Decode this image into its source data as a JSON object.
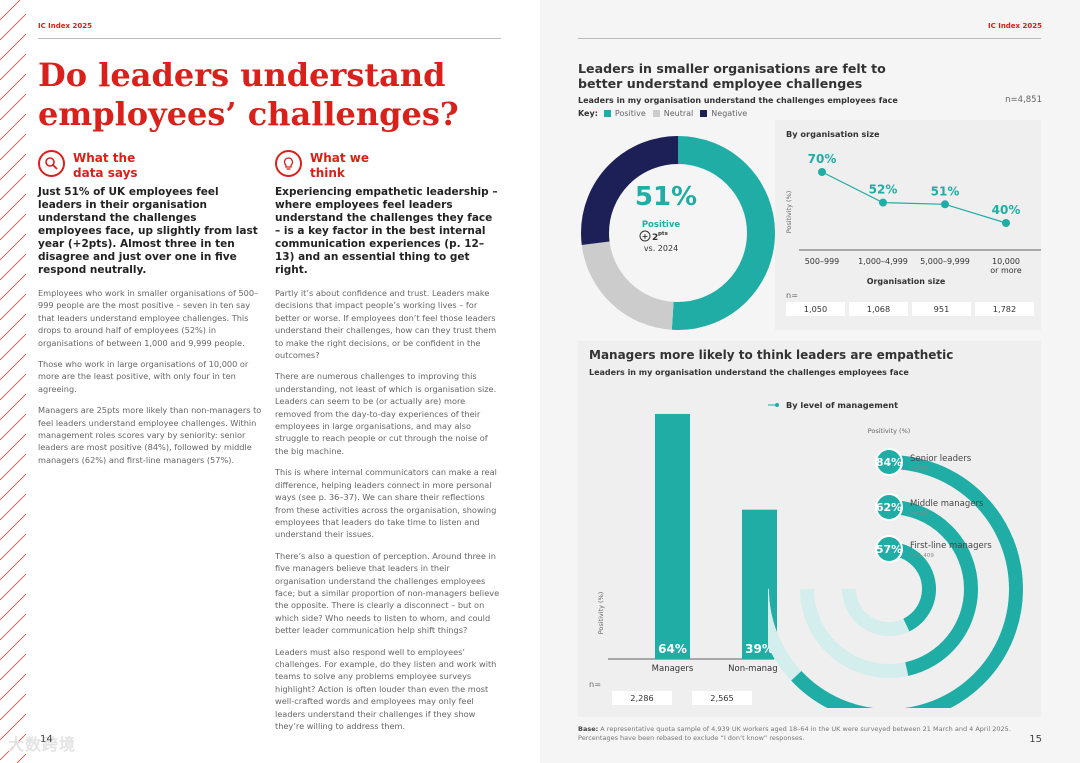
{
  "header": {
    "left": "IC Index 2025",
    "right": "IC Index 2025"
  },
  "left": {
    "title": "Do leaders understand employees’ challenges?",
    "col1": {
      "heading": "What the data says",
      "icon": "magnifier-icon",
      "lead": "Just 51% of UK employees feel leaders in their organisation understand the challenges employees face, up slightly from last year (+2pts). Almost three in ten disagree and just over one in five respond neutrally.",
      "paragraphs": [
        "Employees who work in smaller organisations of 500–999 people are the most positive – seven in ten say that leaders understand employee challenges. This drops to around half of employees (52%) in organisations of between 1,000 and 9,999 people.",
        "Those who work in large organisations of 10,000 or more are the least positive, with only four in ten agreeing.",
        "Managers are 25pts more likely than non-managers to feel leaders understand employee challenges. Within management roles scores vary by seniority: senior leaders are most positive (84%), followed by middle managers (62%) and first-line managers (57%)."
      ]
    },
    "col2": {
      "heading": "What we think",
      "icon": "lightbulb-icon",
      "lead": "Experiencing empathetic leadership – where employees feel leaders understand the challenges they face – is a key factor in the best internal communication experiences (p. 12–13) and an essential thing to get right.",
      "paragraphs": [
        "Partly it’s about confidence and trust. Leaders make decisions that impact people’s working lives – for better or worse. If employees don’t feel those leaders understand their challenges, how can they trust them to make the right decisions, or be confident in the outcomes?",
        "There are numerous challenges to improving this understanding, not least of which is organisation size. Leaders can seem to be (or actually are) more removed from the day-to-day experiences of their employees in large organisations, and may also struggle to reach people or cut through the noise of the big machine.",
        "This is where internal communicators can make a real difference, helping leaders connect in more personal ways (see p. 36–37). We can share their reflections from these activities across the organisation, showing employees that leaders do take time to listen and understand their issues.",
        "There’s also a question of perception. Around three in five managers believe that leaders in their organisation understand the challenges employees face; but a similar proportion of non-managers believe the opposite. There is clearly a disconnect – but on which side? Who needs to listen to whom, and could better leader communication help shift things?",
        "Leaders must also respond well to employees’ challenges. For example, do they listen and work with teams to solve any problems employee surveys highlight? Action is often louder than even the most well-crafted words and employees may only feel leaders understand their challenges if they show they’re willing to address them."
      ]
    },
    "page_number": "14",
    "watermark": "大数跨境"
  },
  "right": {
    "section1": {
      "title": "Leaders in smaller organisations are felt to better understand employee challenges",
      "subtitle": "Leaders in my organisation understand the challenges employees face",
      "n_total": "n=4,851",
      "key_label": "Key:",
      "key": [
        {
          "label": "Positive",
          "color": "#1fada5"
        },
        {
          "label": "Neutral",
          "color": "#cccccc"
        },
        {
          "label": "Negative",
          "color": "#1c2056"
        }
      ]
    },
    "section2": {
      "title": "Managers more likely to think leaders are empathetic",
      "subtitle": "Leaders in my organisation understand the challenges employees face"
    },
    "page_number": "15",
    "footer": {
      "label": "Base:",
      "text": "A representative quota sample of 4,939 UK workers aged 18–64 in the UK were surveyed between 21 March and 4 April 2025. Percentages have been rebased to exclude “I don’t know” responses."
    }
  },
  "chart_data": [
    {
      "type": "pie",
      "style": "donut",
      "title": "Leaders in my organisation understand the challenges employees face",
      "categories": [
        "Positive",
        "Neutral",
        "Negative"
      ],
      "values": [
        51,
        22,
        27
      ],
      "center_value": "51%",
      "center_label": "Positive",
      "change": "+2pts",
      "change_value": "2",
      "change_unit": "pts",
      "change_symbol": "+",
      "comparison": "vs. 2024"
    },
    {
      "type": "line",
      "title": "By organisation size",
      "categories": [
        "500–999",
        "1,000–4,999",
        "5,000–9,999",
        "10,000 or more"
      ],
      "values": [
        70,
        52,
        51,
        40
      ],
      "value_labels": [
        "70%",
        "52%",
        "51%",
        "40%"
      ],
      "xlabel": "Organisation size",
      "ylabel": "Positivity (%)",
      "ylim": [
        30,
        80
      ],
      "n_label": "n=",
      "n": [
        "1,050",
        "1,068",
        "951",
        "1,782"
      ]
    },
    {
      "type": "bar",
      "categories": [
        "Managers",
        "Non-managers"
      ],
      "values": [
        64,
        39
      ],
      "value_labels": [
        "64%",
        "39%"
      ],
      "ylabel": "Positivity (%)",
      "ylim": [
        0,
        70
      ],
      "n_label": "n=",
      "n": [
        "2,286",
        "2,565"
      ]
    },
    {
      "type": "radial-bar",
      "title": "By level of management",
      "axis_label": "Positivity (%)",
      "categories": [
        "Senior leaders",
        "Middle managers",
        "First-line managers"
      ],
      "values": [
        84,
        62,
        57
      ],
      "value_labels": [
        "84%",
        "62%",
        "57%"
      ],
      "n": [
        "n=518",
        "n=359",
        "n=1,409"
      ]
    }
  ]
}
